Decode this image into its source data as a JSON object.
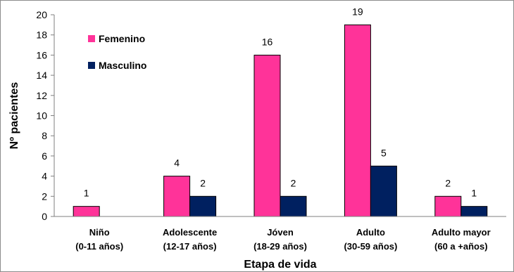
{
  "chart_data": {
    "type": "bar",
    "categories": [
      [
        "Niño",
        "(0-11 años)"
      ],
      [
        "Adolescente",
        "(12-17 años)"
      ],
      [
        "Jóven",
        "(18-29 años)"
      ],
      [
        "Adulto",
        "(30-59 años)"
      ],
      [
        "Adulto mayor",
        "(60 a +años)"
      ]
    ],
    "series": [
      {
        "name": "Femenino",
        "color": "#ff3399",
        "values": [
          1,
          4,
          16,
          19,
          2
        ],
        "labels": [
          "1",
          "4",
          "16",
          "19",
          "2"
        ]
      },
      {
        "name": "Masculino",
        "color": "#002060",
        "values": [
          0,
          2,
          2,
          5,
          1
        ],
        "labels": [
          "",
          "2",
          "2",
          "5",
          "1"
        ]
      }
    ],
    "xlabel": "Etapa de vida",
    "ylabel": "Nº pacientes",
    "ylim": [
      0,
      20
    ],
    "yticks": [
      "0",
      "2",
      "4",
      "6",
      "8",
      "10",
      "12",
      "14",
      "16",
      "18",
      "20"
    ],
    "legend_position": "top-left",
    "grid": false
  }
}
